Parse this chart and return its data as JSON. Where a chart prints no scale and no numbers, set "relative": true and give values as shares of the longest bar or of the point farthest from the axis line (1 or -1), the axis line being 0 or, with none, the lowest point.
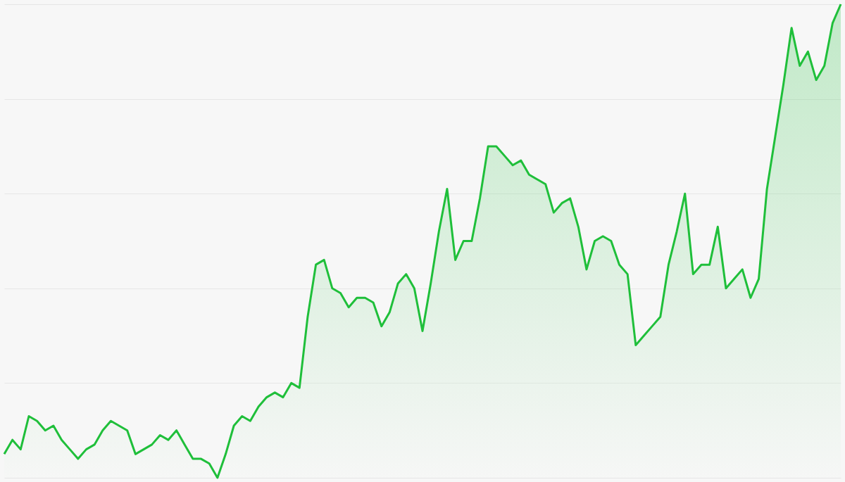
{
  "chart_data": {
    "type": "area",
    "relative": true,
    "grid": "y",
    "categories": [
      null,
      null,
      null,
      null,
      null,
      null,
      null,
      null,
      null,
      null,
      null,
      null,
      null,
      null,
      null,
      null,
      null,
      null,
      null,
      null,
      null,
      null,
      null,
      null,
      null,
      null,
      null,
      null,
      null,
      null,
      null,
      null,
      null,
      null,
      null,
      null,
      null,
      null,
      null,
      null,
      null,
      null,
      null,
      null,
      null,
      null,
      null,
      null,
      null,
      null,
      null,
      null,
      null,
      null,
      null,
      null,
      null,
      null,
      null,
      null,
      null,
      null,
      null,
      null,
      null,
      null,
      null,
      null,
      null,
      null,
      null,
      null,
      null,
      null,
      null,
      null,
      null,
      null,
      null,
      null,
      null,
      null,
      null,
      null,
      null,
      null,
      null,
      null,
      null,
      null,
      null,
      null,
      null,
      null,
      null,
      null,
      null,
      null,
      null,
      null,
      null,
      null,
      null
    ],
    "series": [
      {
        "color": "#1fbf3a",
        "values": [
          0.05,
          0.08,
          0.06,
          0.13,
          0.12,
          0.1,
          0.11,
          0.08,
          0.06,
          0.04,
          0.06,
          0.07,
          0.1,
          0.12,
          0.11,
          0.1,
          0.05,
          0.06,
          0.07,
          0.09,
          0.08,
          0.1,
          0.07,
          0.04,
          0.04,
          0.03,
          0,
          0.05,
          0.11,
          0.13,
          0.12,
          0.15,
          0.17,
          0.18,
          0.17,
          0.2,
          0.19,
          0.34,
          0.45,
          0.46,
          0.4,
          0.39,
          0.36,
          0.38,
          0.38,
          0.37,
          0.32,
          0.35,
          0.41,
          0.43,
          0.4,
          0.31,
          0.41,
          0.52,
          0.61,
          0.46,
          0.5,
          0.5,
          0.59,
          0.7,
          0.7,
          0.68,
          0.66,
          0.67,
          0.64,
          0.63,
          0.62,
          0.56,
          0.58,
          0.59,
          0.53,
          0.44,
          0.5,
          0.51,
          0.5,
          0.45,
          0.43,
          0.28,
          0.3,
          0.32,
          0.34,
          0.45,
          0.52,
          0.6,
          0.43,
          0.45,
          0.45,
          0.53,
          0.4,
          0.42,
          0.44,
          0.38,
          0.42,
          0.61,
          0.72,
          0.83,
          0.95,
          0.87,
          0.9,
          0.84,
          0.87,
          0.96,
          1
        ]
      }
    ]
  }
}
